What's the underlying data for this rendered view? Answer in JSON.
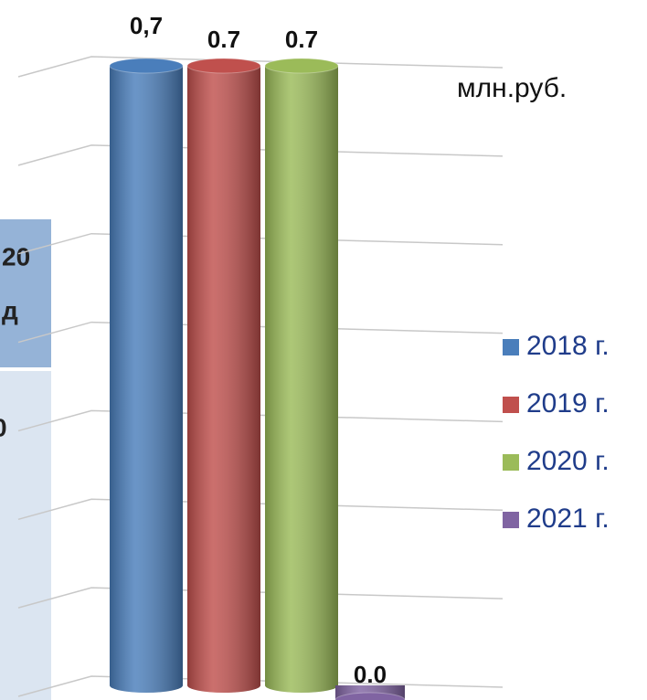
{
  "chart_data": {
    "type": "bar",
    "unit_label": "млн.руб.",
    "categories": [
      null
    ],
    "series": [
      {
        "name": "2018 г.",
        "color": "#4a7ebb",
        "values": [
          0.7
        ],
        "value_labels": [
          "0,7"
        ]
      },
      {
        "name": "2019 г.",
        "color": "#c0504d",
        "values": [
          0.7
        ],
        "value_labels": [
          "0.7"
        ]
      },
      {
        "name": "2020 г.",
        "color": "#9bbb59",
        "values": [
          0.7
        ],
        "value_labels": [
          "0.7"
        ]
      },
      {
        "name": "2021 г.",
        "color": "#8064a2",
        "values": [
          0.0
        ],
        "value_labels": [
          "0.0"
        ]
      }
    ],
    "ylim": [
      0,
      0.7
    ],
    "yticks": [
      0,
      0.1,
      0.2,
      0.3,
      0.4,
      0.5,
      0.6,
      0.7
    ],
    "grid": true,
    "legend": "right"
  },
  "side_table": {
    "header_lines": [
      "20",
      "д"
    ],
    "body": "0"
  }
}
